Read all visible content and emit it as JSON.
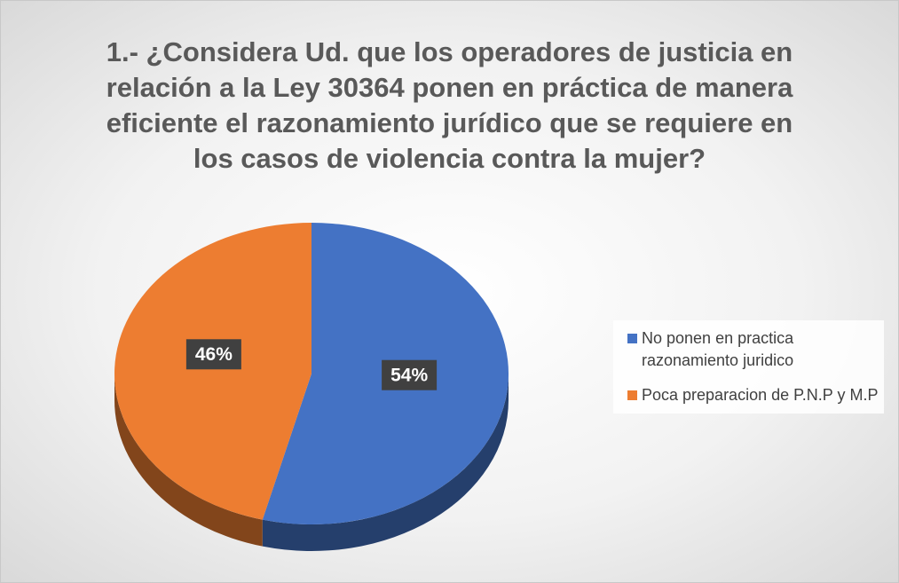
{
  "chart_data": {
    "type": "pie",
    "title": "1.- ¿Considera Ud. que los operadores de justicia en relación a la Ley 30364 ponen en práctica de manera eficiente el razonamiento jurídico que se requiere en los casos de violencia contra la mujer?",
    "categories": [
      "No ponen en practica razonamiento juridico",
      "Poca preparacion de P.N.P y M.P"
    ],
    "values": [
      54,
      46
    ],
    "value_labels": [
      "54%",
      "46%"
    ],
    "colors": [
      "#4472c4",
      "#ed7d31"
    ],
    "legend": "right"
  }
}
